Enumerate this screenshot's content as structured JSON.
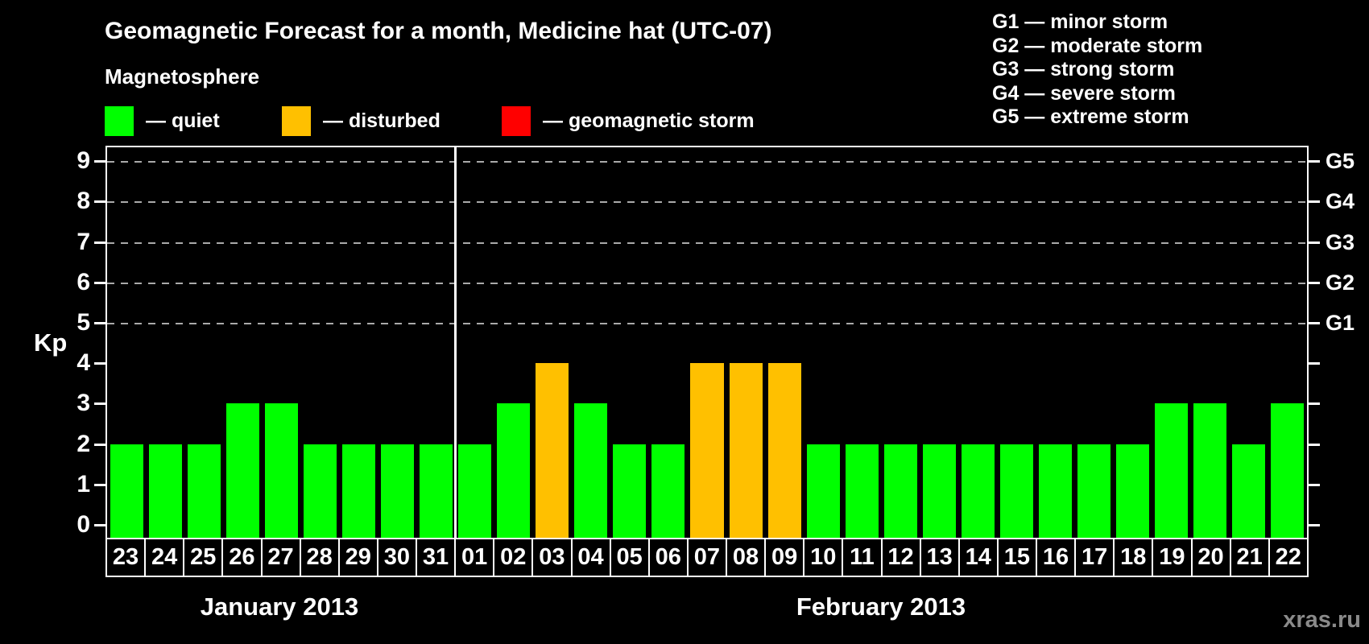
{
  "header": {
    "title": "Geomagnetic Forecast for a month, Medicine hat (UTC-07)",
    "subtitle": "Magnetosphere"
  },
  "magnetosphere_legend": {
    "items": [
      {
        "name": "quiet",
        "label": "— quiet",
        "color": "#00ff00"
      },
      {
        "name": "disturbed",
        "label": "— disturbed",
        "color": "#ffc000"
      },
      {
        "name": "storm",
        "label": "— geomagnetic storm",
        "color": "#ff0000"
      }
    ]
  },
  "storm_scale_legend": {
    "items": [
      "G1 — minor storm",
      "G2 — moderate storm",
      "G3 — strong storm",
      "G4 — severe storm",
      "G5 — extreme storm"
    ]
  },
  "watermark": "xras.ru",
  "chart_data": {
    "type": "bar",
    "title": "Geomagnetic Forecast for a month, Medicine hat (UTC-07)",
    "ylabel": "Kp",
    "ylim": [
      0,
      9
    ],
    "y_ticks": [
      0,
      1,
      2,
      3,
      4,
      5,
      6,
      7,
      8,
      9
    ],
    "gridlines_at_kp": [
      5,
      6,
      7,
      8,
      9
    ],
    "right_axis_labels": [
      {
        "text": "G1",
        "kp": 5
      },
      {
        "text": "G2",
        "kp": 6
      },
      {
        "text": "G3",
        "kp": 7
      },
      {
        "text": "G4",
        "kp": 8
      },
      {
        "text": "G5",
        "kp": 9
      }
    ],
    "state_colors": {
      "quiet": "#00ff00",
      "disturbed": "#ffc000",
      "storm": "#ff0000"
    },
    "months": [
      {
        "label": "January 2013",
        "days": [
          {
            "day": "23",
            "kp": 2,
            "state": "quiet"
          },
          {
            "day": "24",
            "kp": 2,
            "state": "quiet"
          },
          {
            "day": "25",
            "kp": 2,
            "state": "quiet"
          },
          {
            "day": "26",
            "kp": 3,
            "state": "quiet"
          },
          {
            "day": "27",
            "kp": 3,
            "state": "quiet"
          },
          {
            "day": "28",
            "kp": 2,
            "state": "quiet"
          },
          {
            "day": "29",
            "kp": 2,
            "state": "quiet"
          },
          {
            "day": "30",
            "kp": 2,
            "state": "quiet"
          },
          {
            "day": "31",
            "kp": 2,
            "state": "quiet"
          }
        ]
      },
      {
        "label": "February 2013",
        "days": [
          {
            "day": "01",
            "kp": 2,
            "state": "quiet"
          },
          {
            "day": "02",
            "kp": 3,
            "state": "quiet"
          },
          {
            "day": "03",
            "kp": 4,
            "state": "disturbed"
          },
          {
            "day": "04",
            "kp": 3,
            "state": "quiet"
          },
          {
            "day": "05",
            "kp": 2,
            "state": "quiet"
          },
          {
            "day": "06",
            "kp": 2,
            "state": "quiet"
          },
          {
            "day": "07",
            "kp": 4,
            "state": "disturbed"
          },
          {
            "day": "08",
            "kp": 4,
            "state": "disturbed"
          },
          {
            "day": "09",
            "kp": 4,
            "state": "disturbed"
          },
          {
            "day": "10",
            "kp": 2,
            "state": "quiet"
          },
          {
            "day": "11",
            "kp": 2,
            "state": "quiet"
          },
          {
            "day": "12",
            "kp": 2,
            "state": "quiet"
          },
          {
            "day": "13",
            "kp": 2,
            "state": "quiet"
          },
          {
            "day": "14",
            "kp": 2,
            "state": "quiet"
          },
          {
            "day": "15",
            "kp": 2,
            "state": "quiet"
          },
          {
            "day": "16",
            "kp": 2,
            "state": "quiet"
          },
          {
            "day": "17",
            "kp": 2,
            "state": "quiet"
          },
          {
            "day": "18",
            "kp": 2,
            "state": "quiet"
          },
          {
            "day": "19",
            "kp": 3,
            "state": "quiet"
          },
          {
            "day": "20",
            "kp": 3,
            "state": "quiet"
          },
          {
            "day": "21",
            "kp": 2,
            "state": "quiet"
          },
          {
            "day": "22",
            "kp": 3,
            "state": "quiet"
          }
        ]
      }
    ]
  }
}
